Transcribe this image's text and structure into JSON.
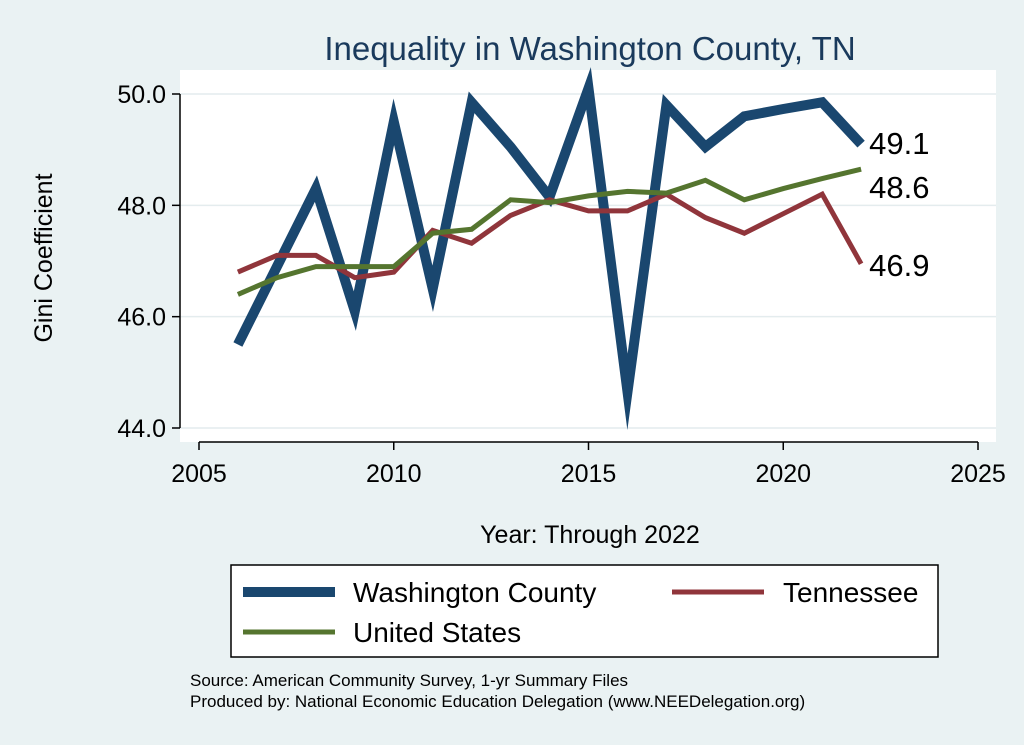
{
  "chart_data": {
    "type": "line",
    "title": "Inequality in Washington County, TN",
    "xlabel": "Year: Through 2022",
    "ylabel": "Gini Coefficient",
    "xlim": [
      2004,
      2026
    ],
    "ylim": [
      43.7,
      50.4
    ],
    "xticks": [
      2005,
      2010,
      2015,
      2020,
      2025
    ],
    "yticks": [
      44.0,
      46.0,
      48.0,
      50.0
    ],
    "ytick_labels": [
      "44.0",
      "46.0",
      "48.0",
      "50.0"
    ],
    "x": [
      2006,
      2007,
      2008,
      2009,
      2010,
      2011,
      2012,
      2013,
      2014,
      2015,
      2016,
      2017,
      2018,
      2019,
      2020,
      2021,
      2022
    ],
    "series": [
      {
        "name": "Washington County",
        "color": "#1a476f",
        "values": [
          45.5,
          46.9,
          48.3,
          46.1,
          49.5,
          46.5,
          49.85,
          49.05,
          48.15,
          50.1,
          44.65,
          49.8,
          49.05,
          49.6,
          49.73,
          49.85,
          49.1
        ],
        "end_label": "49.1"
      },
      {
        "name": "Tennessee",
        "color": "#90353b",
        "values": [
          46.8,
          47.1,
          47.1,
          46.7,
          46.8,
          47.55,
          47.32,
          47.82,
          48.1,
          47.9,
          47.9,
          48.2,
          47.78,
          47.5,
          47.85,
          48.2,
          46.95
        ],
        "end_label": "46.9"
      },
      {
        "name": "United States",
        "color": "#55752f",
        "values": [
          46.4,
          46.7,
          46.9,
          46.9,
          46.9,
          47.5,
          47.57,
          48.1,
          48.05,
          48.17,
          48.25,
          48.22,
          48.45,
          48.1,
          48.3,
          48.48,
          48.65
        ],
        "end_label": "48.6"
      }
    ],
    "legend": [
      "Washington County",
      "Tennessee",
      "United States"
    ]
  },
  "source": {
    "line1": "Source: American Community Survey, 1-yr Summary Files",
    "line2": "Produced by: National Economic Education Delegation (www.NEEDelegation.org)"
  }
}
